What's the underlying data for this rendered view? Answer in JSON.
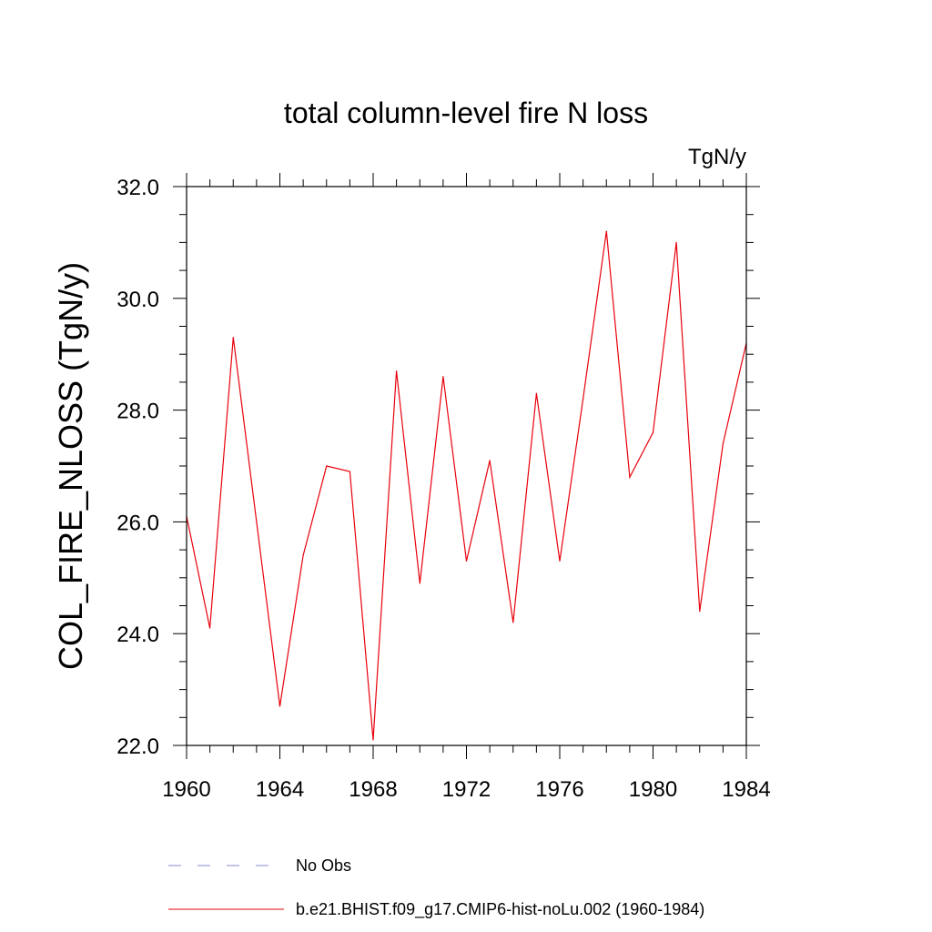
{
  "chart_data": {
    "type": "line",
    "title": "total column-level fire N loss",
    "units_label": "TgN/y",
    "ylabel": "COL_FIRE_NLOSS  (TgN/y)",
    "xlabel": "",
    "xlim": [
      1960,
      1984
    ],
    "ylim": [
      22.0,
      32.0
    ],
    "x_major_ticks": [
      1960,
      1964,
      1968,
      1972,
      1976,
      1980,
      1984
    ],
    "x_tick_labels": [
      "1960",
      "1964",
      "1968",
      "1972",
      "1976",
      "1980",
      "1984"
    ],
    "y_major_ticks": [
      22.0,
      24.0,
      26.0,
      28.0,
      30.0,
      32.0
    ],
    "y_tick_labels": [
      "22.0",
      "24.0",
      "26.0",
      "28.0",
      "30.0",
      "32.0"
    ],
    "grid": false,
    "legend_position": "bottom",
    "series": [
      {
        "name": "b.e21.BHIST.f09_g17.CMIP6-hist-noLu.002 (1960-1984)",
        "color": "#e8000b",
        "style": "solid",
        "x": [
          1960,
          1961,
          1962,
          1963,
          1964,
          1965,
          1966,
          1967,
          1968,
          1969,
          1970,
          1971,
          1972,
          1973,
          1974,
          1975,
          1976,
          1977,
          1978,
          1979,
          1980,
          1981,
          1982,
          1983,
          1984
        ],
        "y": [
          26.1,
          24.1,
          29.3,
          26.0,
          22.7,
          25.4,
          27.0,
          26.9,
          22.1,
          28.7,
          24.9,
          28.6,
          25.3,
          27.1,
          24.2,
          28.3,
          25.3,
          28.2,
          31.2,
          26.8,
          27.6,
          31.0,
          24.4,
          27.4,
          29.2
        ]
      }
    ],
    "legend": [
      {
        "label": "No Obs",
        "color": "#8a8ad6",
        "style": "dashed"
      },
      {
        "label": "b.e21.BHIST.f09_g17.CMIP6-hist-noLu.002 (1960-1984)",
        "color": "#e8000b",
        "style": "solid"
      }
    ]
  }
}
